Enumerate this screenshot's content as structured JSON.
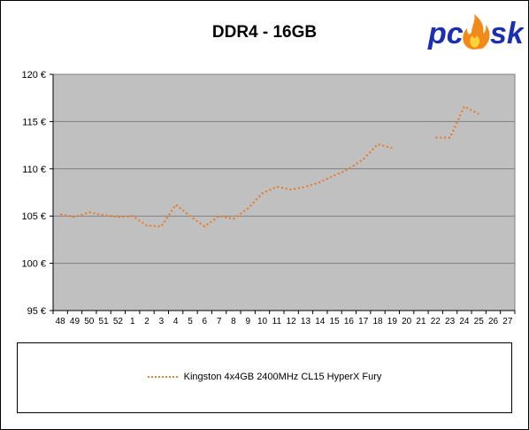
{
  "chart_data": {
    "type": "line",
    "title": "DDR4 - 16GB",
    "xlabel": "",
    "ylabel": "",
    "categories": [
      "48",
      "49",
      "50",
      "51",
      "52",
      "1",
      "2",
      "3",
      "4",
      "5",
      "6",
      "7",
      "8",
      "9",
      "10",
      "11",
      "12",
      "13",
      "14",
      "15",
      "16",
      "17",
      "18",
      "19",
      "20",
      "21",
      "22",
      "23",
      "24",
      "25",
      "26",
      "27"
    ],
    "ylim": [
      95,
      120
    ],
    "yticks": [
      95,
      100,
      105,
      110,
      115,
      120
    ],
    "ytick_labels": [
      "95 €",
      "100 €",
      "105 €",
      "110 €",
      "115 €",
      "120 €"
    ],
    "grid": true,
    "legend_position": "bottom",
    "series": [
      {
        "name": "Kingston 4x4GB 2400MHz CL15 HyperX Fury",
        "color": "#e2823a",
        "style": "dotted",
        "values": [
          105.2,
          104.9,
          105.4,
          105.1,
          104.9,
          105.0,
          104.0,
          103.9,
          106.2,
          105.0,
          103.9,
          105.0,
          104.7,
          105.8,
          107.4,
          108.1,
          107.8,
          108.1,
          108.6,
          109.3,
          110.0,
          111.0,
          112.6,
          112.2,
          null,
          null,
          113.3,
          113.3,
          116.6,
          115.8,
          null,
          null
        ]
      }
    ]
  },
  "logo": {
    "text": "pcosk",
    "brand_color": "#1c2fb0",
    "flame_color": "#f28a1a"
  },
  "colors": {
    "plot_background": "#c0c0c0",
    "gridline": "#808080",
    "axis": "#000000"
  }
}
